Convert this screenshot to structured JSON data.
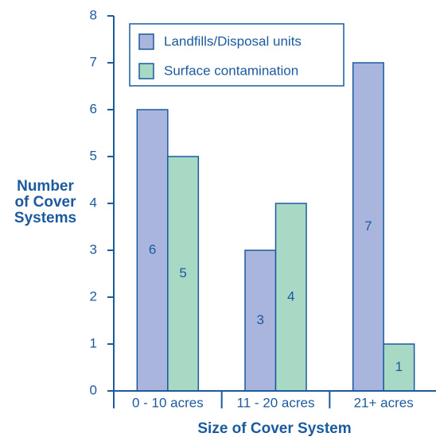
{
  "chart_data": {
    "type": "bar",
    "y_label": [
      "Number",
      "of Cover",
      "Systems"
    ],
    "x_label": "Size of Cover System",
    "categories": [
      "0 - 10 acres",
      "11 - 20 acres",
      "21+ acres"
    ],
    "series": [
      {
        "name": "Landfills/Disposal units",
        "color": "#a9b5dd",
        "values": [
          6,
          3,
          7
        ]
      },
      {
        "name": "Surface contamination",
        "color": "#a8d9c5",
        "values": [
          5,
          4,
          1
        ]
      }
    ],
    "ylim": [
      0,
      8
    ],
    "yticks": [
      0,
      1,
      2,
      3,
      4,
      5,
      6,
      7,
      8
    ],
    "legend": "upper left",
    "grid": false
  }
}
